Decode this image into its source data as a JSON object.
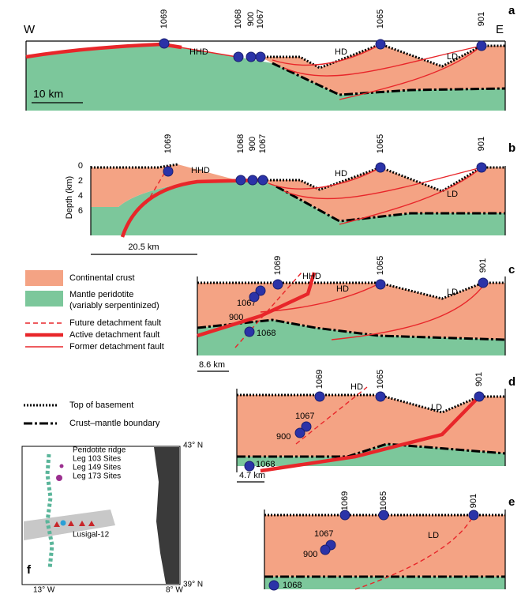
{
  "panels": [
    {
      "label": "a",
      "west": "W",
      "east": "E",
      "sites": [
        "1069",
        "1068",
        "900",
        "1067",
        "1065",
        "901"
      ],
      "faults": [
        "HHD",
        "HD",
        "LD"
      ],
      "scale": "10 km"
    },
    {
      "label": "b",
      "sites": [
        "1069",
        "1068",
        "900",
        "1067",
        "1065",
        "901"
      ],
      "faults": [
        "HHD",
        "HD",
        "LD"
      ],
      "depth_axis": {
        "title": "Depth (km)",
        "ticks": [
          "0",
          "2",
          "4",
          "6"
        ]
      },
      "scale": "20.5 km"
    },
    {
      "label": "c",
      "sites": [
        "1069",
        "1065",
        "901"
      ],
      "inline_sites": [
        "1067",
        "900",
        "1068"
      ],
      "faults": [
        "HHD",
        "HD",
        "LD"
      ],
      "scale": "8.6 km"
    },
    {
      "label": "d",
      "sites": [
        "1069",
        "1065",
        "901"
      ],
      "inline_sites": [
        "1067",
        "900",
        "1068"
      ],
      "faults": [
        "HD",
        "LD"
      ],
      "scale": "4.7 km"
    },
    {
      "label": "e",
      "sites": [
        "1069",
        "1065",
        "901"
      ],
      "inline_sites": [
        "1067",
        "900",
        "1068"
      ],
      "faults": [
        "LD"
      ]
    }
  ],
  "legend": {
    "crust": "Continental crust",
    "mantle": "Mantle peridotite",
    "mantle_note": "(variably serpentinized)",
    "future": "Future detachment fault",
    "active": "Active detachment fault",
    "former": "Former detachment fault",
    "basement": "Top of basement",
    "moho": "Crust–mantle boundary"
  },
  "map": {
    "label": "f",
    "lat_top": "43° N",
    "lat_bottom": "39° N",
    "lon_left": "13° W",
    "lon_right": "8° W",
    "legend": [
      "Peridotite ridge",
      "Leg 103 Sites",
      "Leg 149 Sites",
      "Leg 173 Sites"
    ],
    "profile": "Lusigal-12"
  }
}
